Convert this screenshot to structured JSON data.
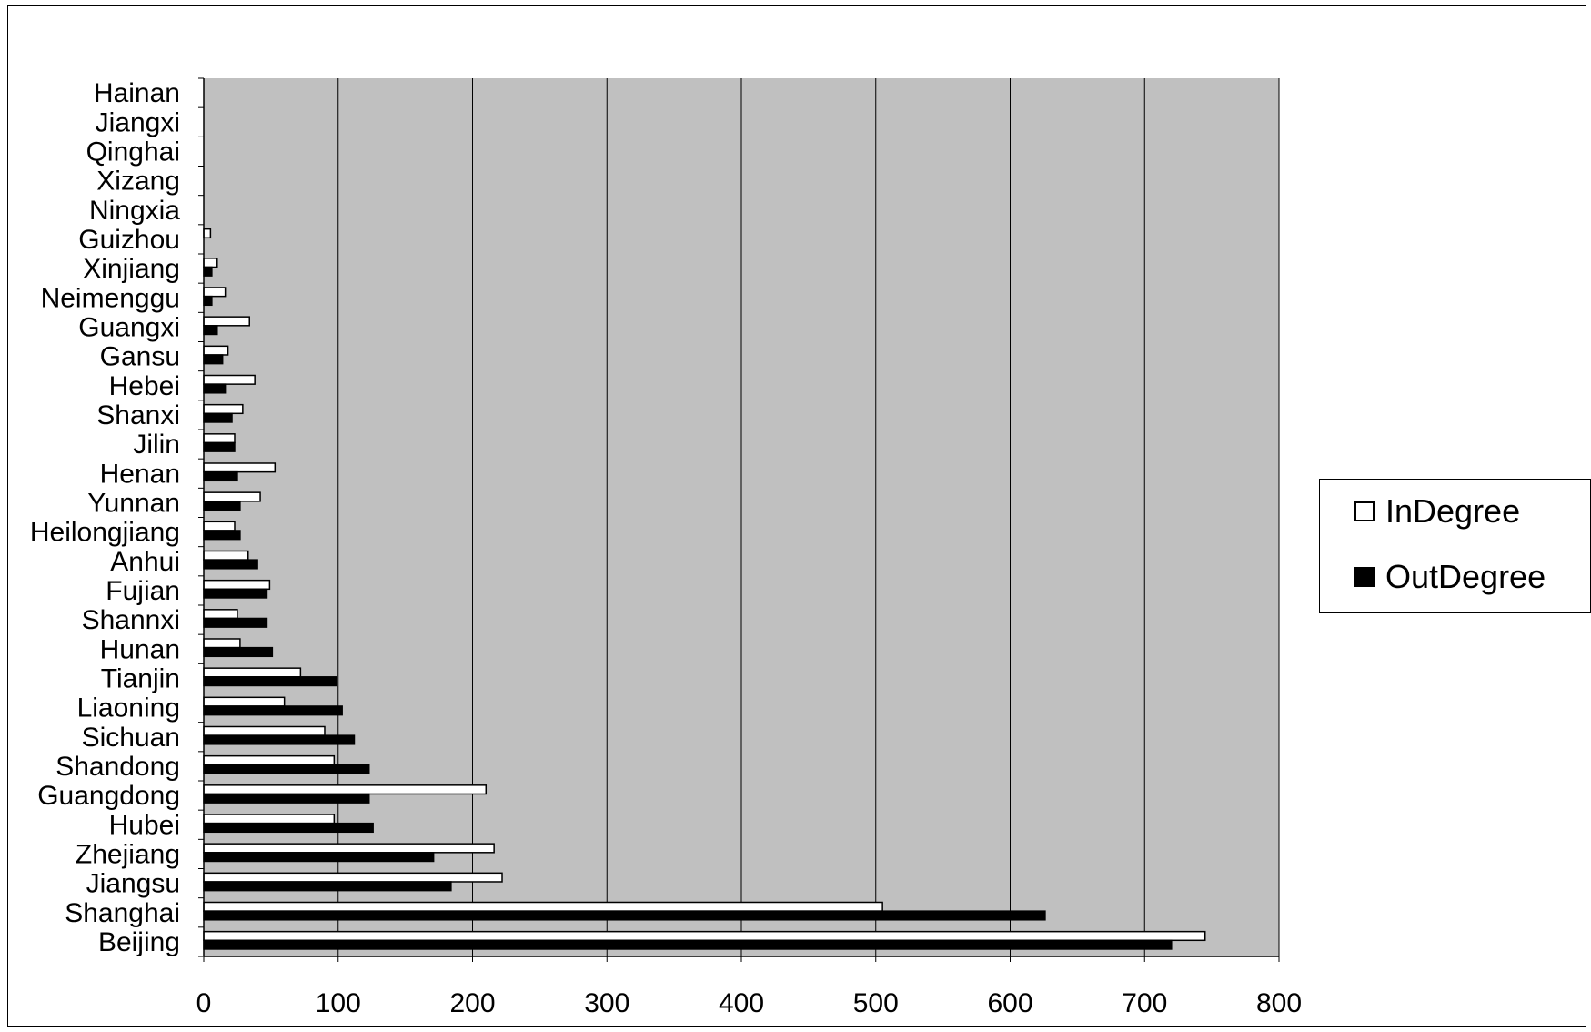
{
  "chart_data": {
    "type": "bar",
    "orientation": "horizontal",
    "categories": [
      "Beijing",
      "Shanghai",
      "Jiangsu",
      "Zhejiang",
      "Hubei",
      "Guangdong",
      "Shandong",
      "Sichuan",
      "Liaoning",
      "Tianjin",
      "Hunan",
      "Shannxi",
      "Fujian",
      "Anhui",
      "Heilongjiang",
      "Yunnan",
      "Henan",
      "Jilin",
      "Shanxi",
      "Hebei",
      "Gansu",
      "Guangxi",
      "Neimenggu",
      "Xinjiang",
      "Guizhou",
      "Ningxia",
      "Xizang",
      "Qinghai",
      "Jiangxi",
      "Hainan"
    ],
    "series": [
      {
        "name": "InDegree",
        "color": "#ffffff",
        "values": [
          745,
          505,
          222,
          216,
          97,
          210,
          97,
          90,
          60,
          72,
          27,
          25,
          49,
          33,
          23,
          42,
          53,
          23,
          29,
          38,
          18,
          34,
          16,
          10,
          5,
          0,
          0,
          0,
          0,
          0
        ]
      },
      {
        "name": "OutDegree",
        "color": "#000000",
        "values": [
          720,
          626,
          184,
          171,
          126,
          123,
          123,
          112,
          103,
          99,
          51,
          47,
          47,
          40,
          27,
          27,
          25,
          23,
          21,
          16,
          14,
          10,
          6,
          6,
          0,
          0,
          0,
          0,
          0,
          0
        ]
      }
    ],
    "xlim": [
      0,
      800
    ],
    "xticks": [
      "0",
      "100",
      "200",
      "300",
      "400",
      "500",
      "600",
      "700",
      "800"
    ],
    "xtick_values": [
      0,
      100,
      200,
      300,
      400,
      500,
      600,
      700,
      800
    ],
    "grid": true,
    "plot_background": "#c0c0c0",
    "legend_position": "right"
  }
}
